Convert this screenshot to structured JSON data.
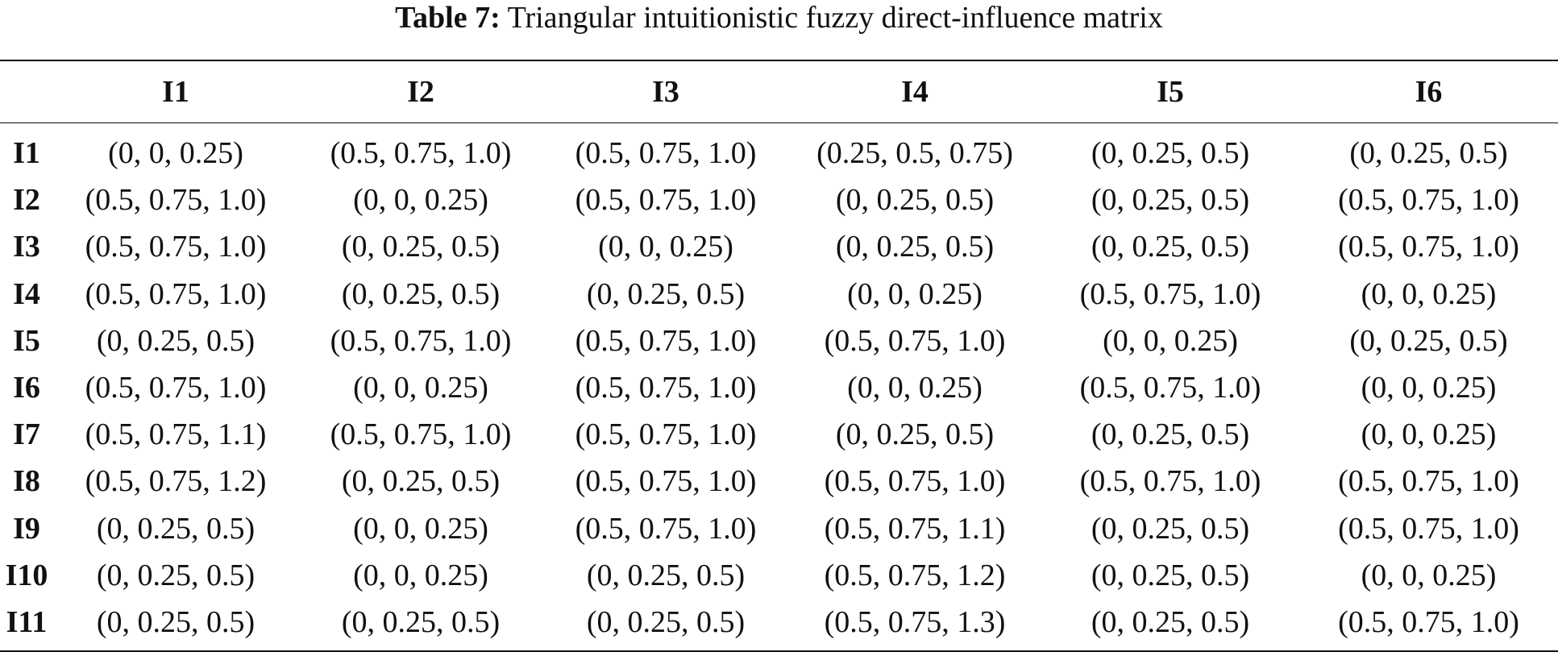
{
  "caption": {
    "label": "Table 7:",
    "text": "Triangular intuitionistic fuzzy direct-influence matrix"
  },
  "table": {
    "corner": "",
    "columns": [
      "I1",
      "I2",
      "I3",
      "I4",
      "I5",
      "I6"
    ],
    "rows": [
      {
        "label": "I1",
        "cells": [
          "(0, 0, 0.25)",
          "(0.5, 0.75, 1.0)",
          "(0.5, 0.75, 1.0)",
          "(0.25, 0.5, 0.75)",
          "(0, 0.25, 0.5)",
          "(0, 0.25, 0.5)"
        ]
      },
      {
        "label": "I2",
        "cells": [
          "(0.5, 0.75, 1.0)",
          "(0, 0, 0.25)",
          "(0.5, 0.75, 1.0)",
          "(0, 0.25, 0.5)",
          "(0, 0.25, 0.5)",
          "(0.5, 0.75, 1.0)"
        ]
      },
      {
        "label": "I3",
        "cells": [
          "(0.5, 0.75, 1.0)",
          "(0, 0.25, 0.5)",
          "(0, 0, 0.25)",
          "(0, 0.25, 0.5)",
          "(0, 0.25, 0.5)",
          "(0.5, 0.75, 1.0)"
        ]
      },
      {
        "label": "I4",
        "cells": [
          "(0.5, 0.75, 1.0)",
          "(0, 0.25, 0.5)",
          "(0, 0.25, 0.5)",
          "(0, 0, 0.25)",
          "(0.5, 0.75, 1.0)",
          "(0, 0, 0.25)"
        ]
      },
      {
        "label": "I5",
        "cells": [
          "(0, 0.25, 0.5)",
          "(0.5, 0.75, 1.0)",
          "(0.5, 0.75, 1.0)",
          "(0.5, 0.75, 1.0)",
          "(0, 0, 0.25)",
          "(0, 0.25, 0.5)"
        ]
      },
      {
        "label": "I6",
        "cells": [
          "(0.5, 0.75, 1.0)",
          "(0, 0, 0.25)",
          "(0.5, 0.75, 1.0)",
          "(0, 0, 0.25)",
          "(0.5, 0.75, 1.0)",
          "(0, 0, 0.25)"
        ]
      },
      {
        "label": "I7",
        "cells": [
          "(0.5, 0.75, 1.1)",
          "(0.5, 0.75, 1.0)",
          "(0.5, 0.75, 1.0)",
          "(0, 0.25, 0.5)",
          "(0, 0.25, 0.5)",
          "(0, 0, 0.25)"
        ]
      },
      {
        "label": "I8",
        "cells": [
          "(0.5, 0.75, 1.2)",
          "(0, 0.25, 0.5)",
          "(0.5, 0.75, 1.0)",
          "(0.5, 0.75, 1.0)",
          "(0.5, 0.75, 1.0)",
          "(0.5, 0.75, 1.0)"
        ]
      },
      {
        "label": "I9",
        "cells": [
          "(0, 0.25, 0.5)",
          "(0, 0, 0.25)",
          "(0.5, 0.75, 1.0)",
          "(0.5, 0.75, 1.1)",
          "(0, 0.25, 0.5)",
          "(0.5, 0.75, 1.0)"
        ]
      },
      {
        "label": "I10",
        "cells": [
          "(0, 0.25, 0.5)",
          "(0, 0, 0.25)",
          "(0, 0.25, 0.5)",
          "(0.5, 0.75, 1.2)",
          "(0, 0.25, 0.5)",
          "(0, 0, 0.25)"
        ]
      },
      {
        "label": "I11",
        "cells": [
          "(0, 0.25, 0.5)",
          "(0, 0.25, 0.5)",
          "(0, 0.25, 0.5)",
          "(0.5, 0.75, 1.3)",
          "(0, 0.25, 0.5)",
          "(0.5, 0.75, 1.0)"
        ]
      }
    ]
  }
}
